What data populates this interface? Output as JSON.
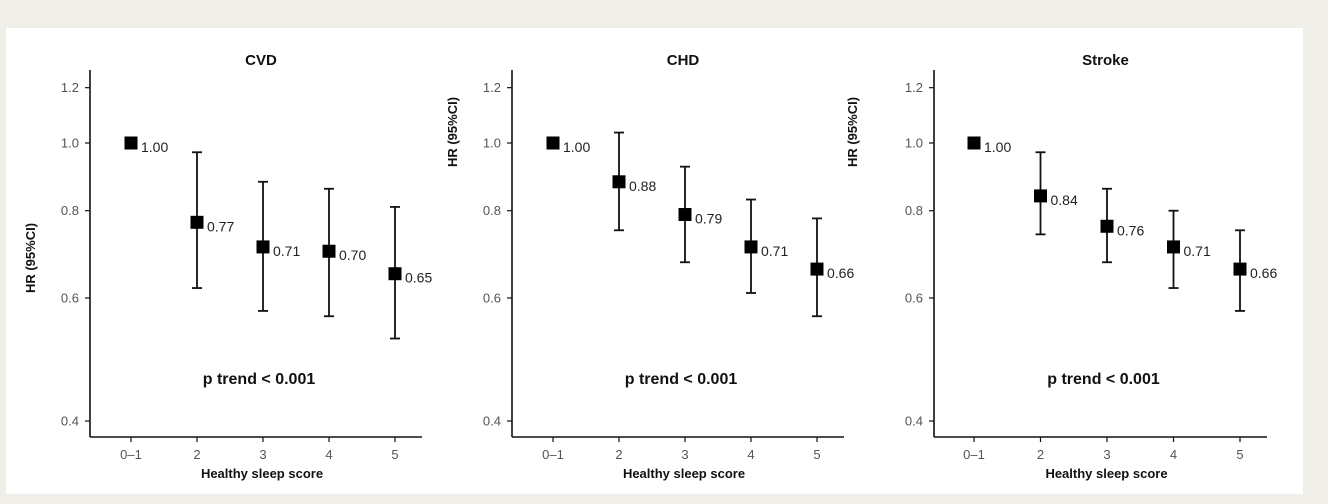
{
  "chart_data": [
    {
      "type": "scatter",
      "title": "CVD",
      "xlabel": "Healthy sleep score",
      "ylabel": "HR (95%CI)",
      "categories": [
        "0–1",
        "2",
        "3",
        "4",
        "5"
      ],
      "values": [
        1.0,
        0.77,
        0.71,
        0.7,
        0.65
      ],
      "value_labels": [
        "1.00",
        "0.77",
        "0.71",
        "0.70",
        "0.65"
      ],
      "ci_lower": [
        null,
        0.62,
        0.575,
        0.565,
        0.525
      ],
      "ci_upper": [
        null,
        0.97,
        0.88,
        0.86,
        0.81
      ],
      "yticks": [
        0.4,
        0.6,
        0.8,
        1.0,
        1.2
      ],
      "ytick_labels": [
        "0.4",
        "0.6",
        "0.8",
        "1.0",
        "1.2"
      ],
      "ylim": [
        0.4,
        1.25
      ],
      "yscale": "log",
      "annotation": "p trend < 0.001",
      "grid": false
    },
    {
      "type": "scatter",
      "title": "CHD",
      "xlabel": "Healthy sleep score",
      "ylabel": "HR (95%CI)",
      "categories": [
        "0–1",
        "2",
        "3",
        "4",
        "5"
      ],
      "values": [
        1.0,
        0.88,
        0.79,
        0.71,
        0.66
      ],
      "value_labels": [
        "1.00",
        "0.88",
        "0.79",
        "0.71",
        "0.66"
      ],
      "ci_lower": [
        null,
        0.75,
        0.675,
        0.61,
        0.565
      ],
      "ci_upper": [
        null,
        1.035,
        0.925,
        0.83,
        0.78
      ],
      "yticks": [
        0.4,
        0.6,
        0.8,
        1.0,
        1.2
      ],
      "ytick_labels": [
        "0.4",
        "0.6",
        "0.8",
        "1.0",
        "1.2"
      ],
      "ylim": [
        0.4,
        1.25
      ],
      "yscale": "log",
      "annotation": "p trend < 0.001",
      "grid": false
    },
    {
      "type": "scatter",
      "title": "Stroke",
      "xlabel": "Healthy sleep score",
      "ylabel": "HR (95%CI)",
      "categories": [
        "0–1",
        "2",
        "3",
        "4",
        "5"
      ],
      "values": [
        1.0,
        0.84,
        0.76,
        0.71,
        0.66
      ],
      "value_labels": [
        "1.00",
        "0.84",
        "0.76",
        "0.71",
        "0.66"
      ],
      "ci_lower": [
        null,
        0.74,
        0.675,
        0.62,
        0.575
      ],
      "ci_upper": [
        null,
        0.97,
        0.86,
        0.8,
        0.75
      ],
      "yticks": [
        0.4,
        0.6,
        0.8,
        1.0,
        1.2
      ],
      "ytick_labels": [
        "0.4",
        "0.6",
        "0.8",
        "1.0",
        "1.2"
      ],
      "ylim": [
        0.4,
        1.25
      ],
      "yscale": "log",
      "annotation": "p trend < 0.001",
      "grid": false
    }
  ]
}
